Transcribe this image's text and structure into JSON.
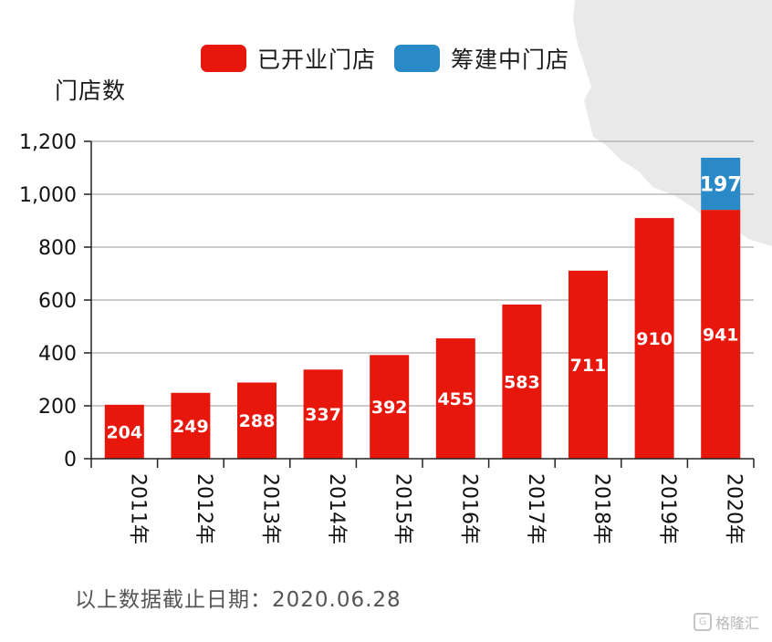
{
  "chart_data": {
    "type": "bar",
    "stacked": true,
    "ylabel": "门店数",
    "categories": [
      "2011年",
      "2012年",
      "2013年",
      "2014年",
      "2015年",
      "2016年",
      "2017年",
      "2018年",
      "2019年",
      "2020年"
    ],
    "series": [
      {
        "name": "已开业门店",
        "color": "#e8170c",
        "values": [
          204,
          249,
          288,
          337,
          392,
          455,
          583,
          711,
          910,
          941
        ]
      },
      {
        "name": "筹建中门店",
        "color": "#2a8ac7",
        "values": [
          0,
          0,
          0,
          0,
          0,
          0,
          0,
          0,
          0,
          197
        ]
      }
    ],
    "ylim": [
      0,
      1200
    ],
    "yticks": [
      0,
      200,
      400,
      600,
      800,
      1000,
      1200
    ],
    "ytick_labels": [
      "0",
      "200",
      "400",
      "600",
      "800",
      "1,000",
      "1,200"
    ],
    "grid": true,
    "legend_position": "top"
  },
  "footnote": "以上数据截止日期：2020.06.28",
  "watermark": "格隆汇"
}
